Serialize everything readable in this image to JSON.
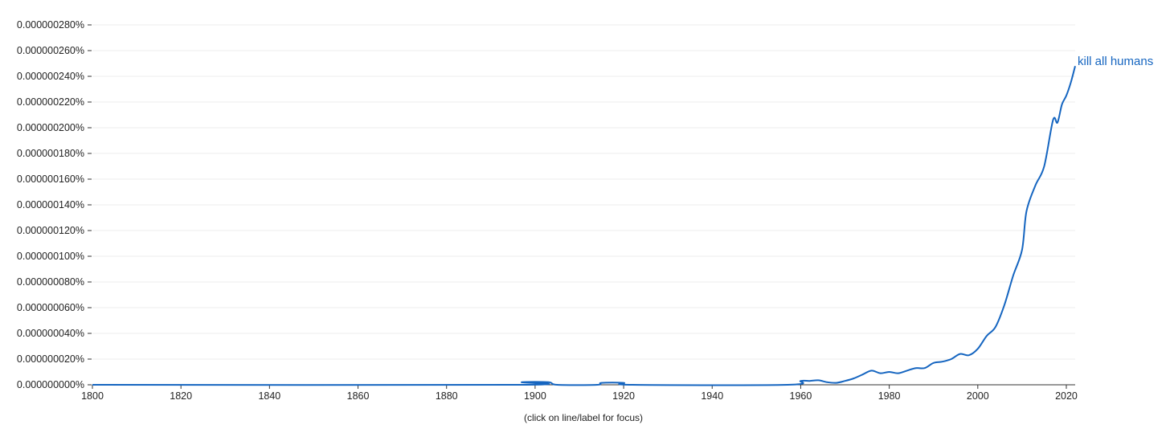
{
  "chart_data": {
    "type": "line",
    "x_label_note": "(click on line/label for focus)",
    "xlim": [
      1800,
      2022
    ],
    "ylim": [
      0,
      2.8e-07
    ],
    "x_ticks": [
      1800,
      1820,
      1840,
      1860,
      1880,
      1900,
      1920,
      1940,
      1960,
      1980,
      2000,
      2020
    ],
    "y_ticks": [
      "0.000000000%",
      "0.000000020%",
      "0.000000040%",
      "0.000000060%",
      "0.000000080%",
      "0.000000100%",
      "0.000000120%",
      "0.000000140%",
      "0.000000160%",
      "0.000000180%",
      "0.000000200%",
      "0.000000220%",
      "0.000000240%",
      "0.000000260%",
      "0.000000280%"
    ],
    "grid": true,
    "colors": {
      "series": "#1565c0",
      "grid": "#eeeeee",
      "axis": "#333333"
    },
    "series": [
      {
        "name": "kill all humans",
        "points": [
          [
            1800,
            0
          ],
          [
            1896,
            0
          ],
          [
            1897,
            2e-09
          ],
          [
            1903,
            2e-09
          ],
          [
            1905,
            0
          ],
          [
            1914,
            0
          ],
          [
            1915,
            1.5e-09
          ],
          [
            1920,
            1.5e-09
          ],
          [
            1922,
            0
          ],
          [
            1957,
            0
          ],
          [
            1960,
            3e-09
          ],
          [
            1962,
            3e-09
          ],
          [
            1964,
            3.5e-09
          ],
          [
            1966,
            2e-09
          ],
          [
            1968,
            1.5e-09
          ],
          [
            1970,
            3e-09
          ],
          [
            1972,
            5e-09
          ],
          [
            1974,
            8e-09
          ],
          [
            1976,
            1.1e-08
          ],
          [
            1978,
            9e-09
          ],
          [
            1980,
            1e-08
          ],
          [
            1982,
            9e-09
          ],
          [
            1984,
            1.1e-08
          ],
          [
            1986,
            1.3e-08
          ],
          [
            1988,
            1.3e-08
          ],
          [
            1990,
            1.7e-08
          ],
          [
            1992,
            1.8e-08
          ],
          [
            1994,
            2e-08
          ],
          [
            1996,
            2.4e-08
          ],
          [
            1998,
            2.3e-08
          ],
          [
            2000,
            2.8e-08
          ],
          [
            2002,
            3.8e-08
          ],
          [
            2004,
            4.5e-08
          ],
          [
            2006,
            6.2e-08
          ],
          [
            2008,
            8.5e-08
          ],
          [
            2010,
            1.05e-07
          ],
          [
            2011,
            1.35e-07
          ],
          [
            2013,
            1.55e-07
          ],
          [
            2015,
            1.7e-07
          ],
          [
            2017,
            2.06e-07
          ],
          [
            2018,
            2.04e-07
          ],
          [
            2019,
            2.18e-07
          ],
          [
            2020,
            2.25e-07
          ],
          [
            2021,
            2.35e-07
          ],
          [
            2022,
            2.48e-07
          ]
        ]
      }
    ]
  }
}
